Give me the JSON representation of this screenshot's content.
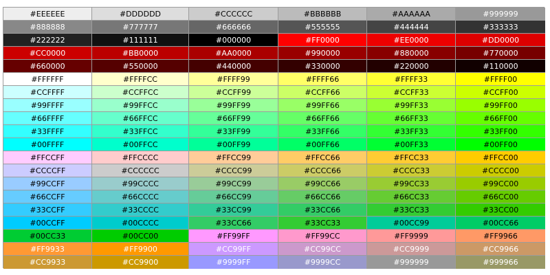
{
  "rows": [
    [
      {
        "label": "#EEEEEE",
        "bg": "#EEEEEE",
        "fg": "#000000"
      },
      {
        "label": "#DDDDDD",
        "bg": "#DDDDDD",
        "fg": "#000000"
      },
      {
        "label": "#CCCCCC",
        "bg": "#CCCCCC",
        "fg": "#000000"
      },
      {
        "label": "#BBBBBB",
        "bg": "#BBBBBB",
        "fg": "#000000"
      },
      {
        "label": "#AAAAAA",
        "bg": "#AAAAAA",
        "fg": "#000000"
      },
      {
        "label": "#999999",
        "bg": "#999999",
        "fg": "#FFFFFF"
      }
    ],
    [
      {
        "label": "#888888",
        "bg": "#888888",
        "fg": "#FFFFFF"
      },
      {
        "label": "#777777",
        "bg": "#777777",
        "fg": "#FFFFFF"
      },
      {
        "label": "#666666",
        "bg": "#666666",
        "fg": "#FFFFFF"
      },
      {
        "label": "#555555",
        "bg": "#555555",
        "fg": "#FFFFFF"
      },
      {
        "label": "#444444",
        "bg": "#444444",
        "fg": "#FFFFFF"
      },
      {
        "label": "#333333",
        "bg": "#333333",
        "fg": "#FFFFFF"
      }
    ],
    [
      {
        "label": "#222222",
        "bg": "#222222",
        "fg": "#FFFFFF"
      },
      {
        "label": "#111111",
        "bg": "#111111",
        "fg": "#FFFFFF"
      },
      {
        "label": "#000000",
        "bg": "#000000",
        "fg": "#FFFFFF"
      },
      {
        "label": "#FF0000",
        "bg": "#FF0000",
        "fg": "#FFFFFF"
      },
      {
        "label": "#EE0000",
        "bg": "#EE0000",
        "fg": "#FFFFFF"
      },
      {
        "label": "#DD0000",
        "bg": "#DD0000",
        "fg": "#FFFFFF"
      }
    ],
    [
      {
        "label": "#CC0000",
        "bg": "#CC0000",
        "fg": "#FFFFFF"
      },
      {
        "label": "#BB0000",
        "bg": "#BB0000",
        "fg": "#FFFFFF"
      },
      {
        "label": "#AA0000",
        "bg": "#AA0000",
        "fg": "#FFFFFF"
      },
      {
        "label": "#990000",
        "bg": "#990000",
        "fg": "#FFFFFF"
      },
      {
        "label": "#880000",
        "bg": "#880000",
        "fg": "#FFFFFF"
      },
      {
        "label": "#770000",
        "bg": "#770000",
        "fg": "#FFFFFF"
      }
    ],
    [
      {
        "label": "#660000",
        "bg": "#660000",
        "fg": "#FFFFFF"
      },
      {
        "label": "#550000",
        "bg": "#550000",
        "fg": "#FFFFFF"
      },
      {
        "label": "#440000",
        "bg": "#440000",
        "fg": "#FFFFFF"
      },
      {
        "label": "#330000",
        "bg": "#330000",
        "fg": "#FFFFFF"
      },
      {
        "label": "#220000",
        "bg": "#220000",
        "fg": "#FFFFFF"
      },
      {
        "label": "#110000",
        "bg": "#110000",
        "fg": "#FFFFFF"
      }
    ],
    [
      {
        "label": "#FFFFFF",
        "bg": "#FFFFFF",
        "fg": "#000000"
      },
      {
        "label": "#FFFFCC",
        "bg": "#FFFFCC",
        "fg": "#000000"
      },
      {
        "label": "#FFFF99",
        "bg": "#FFFF99",
        "fg": "#000000"
      },
      {
        "label": "#FFFF66",
        "bg": "#FFFF66",
        "fg": "#000000"
      },
      {
        "label": "#FFFF33",
        "bg": "#FFFF33",
        "fg": "#000000"
      },
      {
        "label": "#FFFF00",
        "bg": "#FFFF00",
        "fg": "#000000"
      }
    ],
    [
      {
        "label": "#CCFFFF",
        "bg": "#CCFFFF",
        "fg": "#000000"
      },
      {
        "label": "#CCFFCC",
        "bg": "#CCFFCC",
        "fg": "#000000"
      },
      {
        "label": "#CCFF99",
        "bg": "#CCFF99",
        "fg": "#000000"
      },
      {
        "label": "#CCFF66",
        "bg": "#CCFF66",
        "fg": "#000000"
      },
      {
        "label": "#CCFF33",
        "bg": "#CCFF33",
        "fg": "#000000"
      },
      {
        "label": "#CCFF00",
        "bg": "#CCFF00",
        "fg": "#000000"
      }
    ],
    [
      {
        "label": "#99FFFF",
        "bg": "#99FFFF",
        "fg": "#000000"
      },
      {
        "label": "#99FFCC",
        "bg": "#99FFCC",
        "fg": "#000000"
      },
      {
        "label": "#99FF99",
        "bg": "#99FF99",
        "fg": "#000000"
      },
      {
        "label": "#99FF66",
        "bg": "#99FF66",
        "fg": "#000000"
      },
      {
        "label": "#99FF33",
        "bg": "#99FF33",
        "fg": "#000000"
      },
      {
        "label": "#99FF00",
        "bg": "#99FF00",
        "fg": "#000000"
      }
    ],
    [
      {
        "label": "#66FFFF",
        "bg": "#66FFFF",
        "fg": "#000000"
      },
      {
        "label": "#66FFCC",
        "bg": "#66FFCC",
        "fg": "#000000"
      },
      {
        "label": "#66FF99",
        "bg": "#66FF99",
        "fg": "#000000"
      },
      {
        "label": "#66FF66",
        "bg": "#66FF66",
        "fg": "#000000"
      },
      {
        "label": "#66FF33",
        "bg": "#66FF33",
        "fg": "#000000"
      },
      {
        "label": "#66FF00",
        "bg": "#66FF00",
        "fg": "#000000"
      }
    ],
    [
      {
        "label": "#33FFFF",
        "bg": "#33FFFF",
        "fg": "#000000"
      },
      {
        "label": "#33FFCC",
        "bg": "#33FFCC",
        "fg": "#000000"
      },
      {
        "label": "#33FF99",
        "bg": "#33FF99",
        "fg": "#000000"
      },
      {
        "label": "#33FF66",
        "bg": "#33FF66",
        "fg": "#000000"
      },
      {
        "label": "#33FF33",
        "bg": "#33FF33",
        "fg": "#000000"
      },
      {
        "label": "#33FF00",
        "bg": "#33FF00",
        "fg": "#000000"
      }
    ],
    [
      {
        "label": "#00FFFF",
        "bg": "#00FFFF",
        "fg": "#000000"
      },
      {
        "label": "#00FFCC",
        "bg": "#00FFCC",
        "fg": "#000000"
      },
      {
        "label": "#00FF99",
        "bg": "#00FF99",
        "fg": "#000000"
      },
      {
        "label": "#00FF66",
        "bg": "#00FF66",
        "fg": "#000000"
      },
      {
        "label": "#00FF33",
        "bg": "#00FF33",
        "fg": "#000000"
      },
      {
        "label": "#00FF00",
        "bg": "#00FF00",
        "fg": "#000000"
      }
    ],
    [
      {
        "label": "#FFCCFF",
        "bg": "#FFCCFF",
        "fg": "#000000"
      },
      {
        "label": "#FFCCCC",
        "bg": "#FFCCCC",
        "fg": "#000000"
      },
      {
        "label": "#FFCC99",
        "bg": "#FFCC99",
        "fg": "#000000"
      },
      {
        "label": "#FFCC66",
        "bg": "#FFCC66",
        "fg": "#000000"
      },
      {
        "label": "#FFCC33",
        "bg": "#FFCC33",
        "fg": "#000000"
      },
      {
        "label": "#FFCC00",
        "bg": "#FFCC00",
        "fg": "#000000"
      }
    ],
    [
      {
        "label": "#CCCCFF",
        "bg": "#CCCCFF",
        "fg": "#000000"
      },
      {
        "label": "#CCCCCC",
        "bg": "#CCCCCC",
        "fg": "#000000"
      },
      {
        "label": "#CCCC99",
        "bg": "#CCCC99",
        "fg": "#000000"
      },
      {
        "label": "#CCCC66",
        "bg": "#CCCC66",
        "fg": "#000000"
      },
      {
        "label": "#CCCC33",
        "bg": "#CCCC33",
        "fg": "#000000"
      },
      {
        "label": "#CCCC00",
        "bg": "#CCCC00",
        "fg": "#000000"
      }
    ],
    [
      {
        "label": "#99CCFF",
        "bg": "#99CCFF",
        "fg": "#000000"
      },
      {
        "label": "#99CCCC",
        "bg": "#99CCCC",
        "fg": "#000000"
      },
      {
        "label": "#99CC99",
        "bg": "#99CC99",
        "fg": "#000000"
      },
      {
        "label": "#99CC66",
        "bg": "#99CC66",
        "fg": "#000000"
      },
      {
        "label": "#99CC33",
        "bg": "#99CC33",
        "fg": "#000000"
      },
      {
        "label": "#99CC00",
        "bg": "#99CC00",
        "fg": "#000000"
      }
    ],
    [
      {
        "label": "#66CCFF",
        "bg": "#66CCFF",
        "fg": "#000000"
      },
      {
        "label": "#66CCCC",
        "bg": "#66CCCC",
        "fg": "#000000"
      },
      {
        "label": "#66CC99",
        "bg": "#66CC99",
        "fg": "#000000"
      },
      {
        "label": "#66CC66",
        "bg": "#66CC66",
        "fg": "#000000"
      },
      {
        "label": "#66CC33",
        "bg": "#66CC33",
        "fg": "#000000"
      },
      {
        "label": "#66CC00",
        "bg": "#66CC00",
        "fg": "#000000"
      }
    ],
    [
      {
        "label": "#33CCFF",
        "bg": "#33CCFF",
        "fg": "#000000"
      },
      {
        "label": "#33CCCC",
        "bg": "#33CCCC",
        "fg": "#000000"
      },
      {
        "label": "#33CC99",
        "bg": "#33CC99",
        "fg": "#000000"
      },
      {
        "label": "#33CC66",
        "bg": "#33CC66",
        "fg": "#000000"
      },
      {
        "label": "#33CC33",
        "bg": "#33CC33",
        "fg": "#000000"
      },
      {
        "label": "#33CC00",
        "bg": "#33CC00",
        "fg": "#000000"
      }
    ],
    [
      {
        "label": "#00CCFF",
        "bg": "#00CCFF",
        "fg": "#000000"
      },
      {
        "label": "#00CCCC",
        "bg": "#00CCCC",
        "fg": "#000000"
      },
      {
        "label": "#33CC66",
        "bg": "#33CC66",
        "fg": "#000000"
      },
      {
        "label": "#33CC33",
        "bg": "#33CC33",
        "fg": "#000000"
      },
      {
        "label": "#00CC99",
        "bg": "#00CC99",
        "fg": "#000000"
      },
      {
        "label": "#00CC66",
        "bg": "#00CC66",
        "fg": "#000000"
      }
    ],
    [
      {
        "label": "#00CC33",
        "bg": "#00CC33",
        "fg": "#000000"
      },
      {
        "label": "#00CC00",
        "bg": "#00CC00",
        "fg": "#000000"
      },
      {
        "label": "#FF99FF",
        "bg": "#FF99FF",
        "fg": "#000000"
      },
      {
        "label": "#FF99CC",
        "bg": "#FF99CC",
        "fg": "#000000"
      },
      {
        "label": "#FF9999",
        "bg": "#FF9999",
        "fg": "#000000"
      },
      {
        "label": "#FF9966",
        "bg": "#FF9966",
        "fg": "#000000"
      }
    ],
    [
      {
        "label": "#FF9933",
        "bg": "#FF9933",
        "fg": "#FFFFFF"
      },
      {
        "label": "#FF9900",
        "bg": "#FF9900",
        "fg": "#FFFFFF"
      },
      {
        "label": "#CC99FF",
        "bg": "#CC99FF",
        "fg": "#FFFFFF"
      },
      {
        "label": "#CC99CC",
        "bg": "#CC99CC",
        "fg": "#FFFFFF"
      },
      {
        "label": "#CC9999",
        "bg": "#CC9999",
        "fg": "#FFFFFF"
      },
      {
        "label": "#CC9966",
        "bg": "#CC9966",
        "fg": "#FFFFFF"
      }
    ],
    [
      {
        "label": "#CC9933",
        "bg": "#CC9933",
        "fg": "#FFFFFF"
      },
      {
        "label": "#CC9900",
        "bg": "#CC9900",
        "fg": "#FFFFFF"
      },
      {
        "label": "#9999FF",
        "bg": "#9999FF",
        "fg": "#FFFFFF"
      },
      {
        "label": "#9999CC",
        "bg": "#9999CC",
        "fg": "#FFFFFF"
      },
      {
        "label": "#999999",
        "bg": "#999999",
        "fg": "#FFFFFF"
      },
      {
        "label": "#999966",
        "bg": "#999966",
        "fg": "#FFFFFF"
      }
    ]
  ]
}
